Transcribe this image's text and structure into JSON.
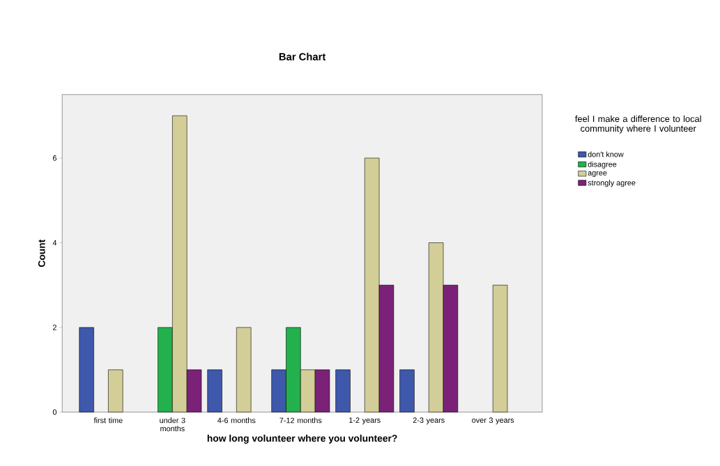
{
  "chart_data": {
    "type": "bar",
    "title": "Bar Chart",
    "xlabel": "how long volunteer where you volunteer?",
    "ylabel": "Count",
    "legend_title": "feel I make a difference to local community where I volunteer",
    "categories": [
      "first time",
      "under 3 months",
      "4-6 months",
      "7-12 months",
      "1-2 years",
      "2-3 years",
      "over 3 years"
    ],
    "series": [
      {
        "name": "don't know",
        "color": "#3e58ac",
        "values": [
          2,
          null,
          1,
          1,
          1,
          1,
          null
        ]
      },
      {
        "name": "disagree",
        "color": "#22b14c",
        "values": [
          null,
          2,
          null,
          2,
          null,
          null,
          null
        ]
      },
      {
        "name": "agree",
        "color": "#d3ce97",
        "values": [
          1,
          7,
          2,
          1,
          6,
          4,
          3
        ]
      },
      {
        "name": "strongly agree",
        "color": "#7b2278",
        "values": [
          null,
          1,
          null,
          1,
          3,
          3,
          null
        ]
      }
    ],
    "ylim": [
      0,
      7.5
    ],
    "yticks": [
      0,
      2,
      4,
      6
    ],
    "grid": false,
    "legend": "right"
  }
}
